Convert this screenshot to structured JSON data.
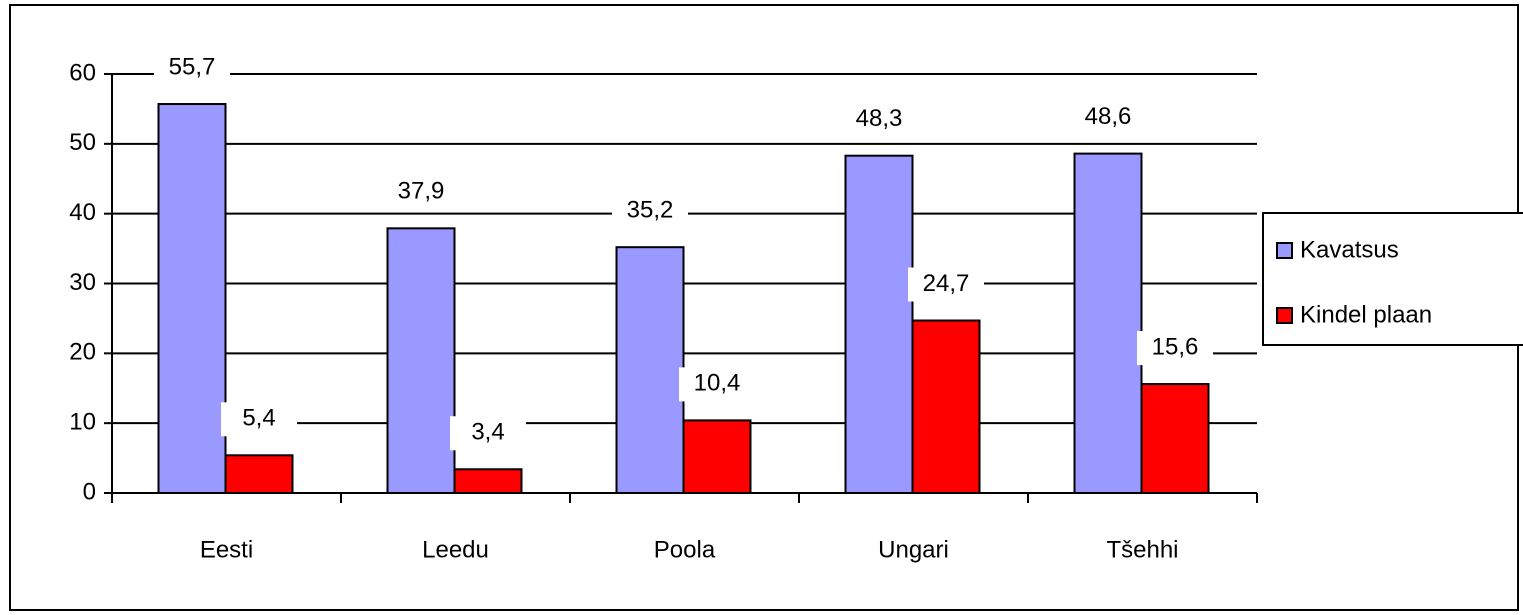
{
  "chart_data": {
    "type": "bar",
    "categories": [
      "Eesti",
      "Leedu",
      "Poola",
      "Ungari",
      "Tšehhi"
    ],
    "series": [
      {
        "name": "Kavatsus",
        "color": "#9999ff",
        "values": [
          55.7,
          37.9,
          35.2,
          48.3,
          48.6
        ],
        "value_labels": [
          "55,7",
          "37,9",
          "35,2",
          "48,3",
          "48,6"
        ]
      },
      {
        "name": "Kindel plaan",
        "color": "#ff0000",
        "values": [
          5.4,
          3.4,
          10.4,
          24.7,
          15.6
        ],
        "value_labels": [
          "5,4",
          "3,4",
          "10,4",
          "24,7",
          "15,6"
        ]
      }
    ],
    "ylim": [
      0,
      60
    ],
    "yticks": [
      0,
      10,
      20,
      30,
      40,
      50,
      60
    ],
    "grid": true,
    "legend": "right"
  }
}
